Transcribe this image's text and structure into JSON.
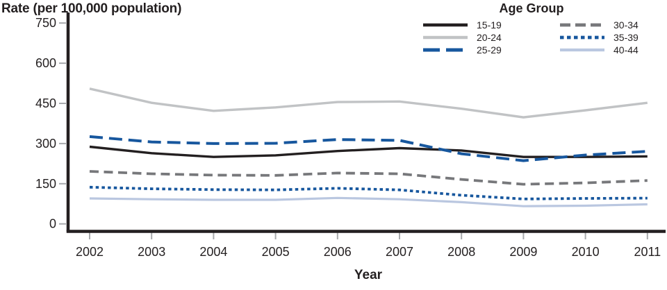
{
  "chart": {
    "y_axis_title": "Rate (per 100,000 population)",
    "x_axis_title": "Year",
    "legend_title": "Age Group"
  },
  "chart_data": {
    "type": "line",
    "title": "",
    "ylabel": "Rate (per 100,000 population)",
    "xlabel": "Year",
    "legend_title": "Age Group",
    "legend_position": "top-right",
    "grid": false,
    "x": [
      2002,
      2003,
      2004,
      2005,
      2006,
      2007,
      2008,
      2009,
      2010,
      2011
    ],
    "ylim": [
      0,
      750
    ],
    "yticks": [
      0,
      150,
      300,
      450,
      600,
      750
    ],
    "colors": {
      "black": "#231f20",
      "light_gray": "#c1c3c5",
      "blue": "#17579e",
      "mid_gray": "#77787b",
      "pale_blue": "#bac7e0",
      "tick_gray": "#a7a9ac"
    },
    "series": [
      {
        "name": "15-19",
        "color": "#231f20",
        "style": "solid",
        "width": 3.4,
        "values": [
          288,
          264,
          250,
          256,
          272,
          283,
          274,
          250,
          250,
          252
        ]
      },
      {
        "name": "20-24",
        "color": "#c1c3c5",
        "style": "solid",
        "width": 3.4,
        "values": [
          505,
          452,
          422,
          435,
          455,
          457,
          430,
          398,
          424,
          452
        ]
      },
      {
        "name": "25-29",
        "color": "#17579e",
        "style": "longdash",
        "width": 4.0,
        "values": [
          326,
          306,
          300,
          301,
          315,
          312,
          262,
          236,
          257,
          271
        ]
      },
      {
        "name": "30-34",
        "color": "#77787b",
        "style": "dash",
        "width": 3.8,
        "values": [
          196,
          187,
          182,
          181,
          190,
          187,
          166,
          148,
          153,
          162
        ]
      },
      {
        "name": "35-39",
        "color": "#17579e",
        "style": "dot",
        "width": 3.8,
        "values": [
          137,
          131,
          128,
          127,
          133,
          127,
          107,
          93,
          95,
          96
        ]
      },
      {
        "name": "40-44",
        "color": "#bac7e0",
        "style": "solid",
        "width": 3.2,
        "values": [
          95,
          92,
          90,
          90,
          97,
          92,
          81,
          66,
          68,
          73
        ]
      }
    ]
  }
}
